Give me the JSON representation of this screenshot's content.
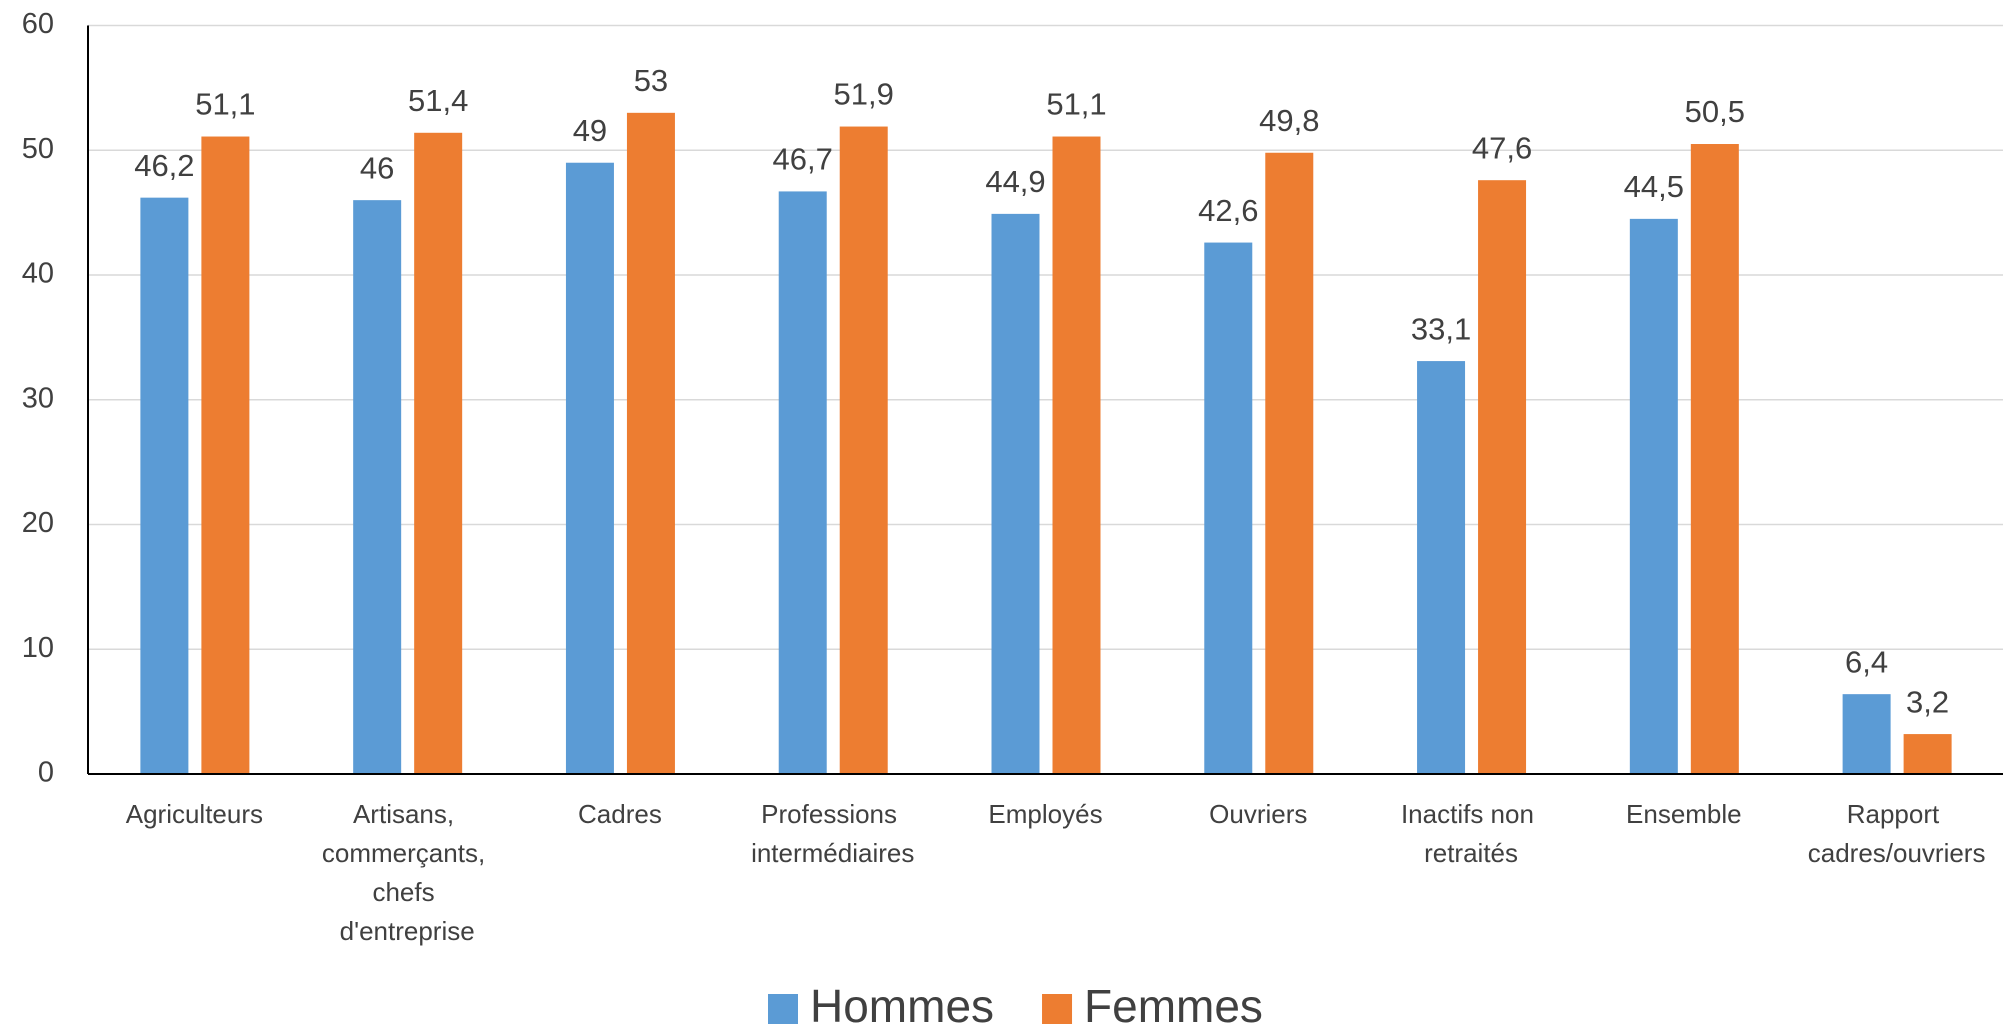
{
  "chart_data": {
    "type": "bar",
    "categories": [
      "Agriculteurs",
      "Artisans, commerçants, chefs d'entreprise",
      "Cadres",
      "Professions intermédiaires",
      "Employés",
      "Ouvriers",
      "Inactifs non retraités",
      "Ensemble",
      "Rapport cadres/ouvriers"
    ],
    "series": [
      {
        "name": "Hommes",
        "color": "#5b9bd5",
        "values": [
          46.2,
          46,
          49,
          46.7,
          44.9,
          42.6,
          33.1,
          44.5,
          6.4
        ],
        "value_labels": [
          "46,2",
          "46",
          "49",
          "46,7",
          "44,9",
          "42,6",
          "33,1",
          "44,5",
          "6,4"
        ]
      },
      {
        "name": "Femmes",
        "color": "#ed7d31",
        "values": [
          51.1,
          51.4,
          53,
          51.9,
          51.1,
          49.8,
          47.6,
          50.5,
          3.2
        ],
        "value_labels": [
          "51,1",
          "51,4",
          "53",
          "51,9",
          "51,1",
          "49,8",
          "47,6",
          "50,5",
          "3,2"
        ]
      }
    ],
    "ylim": [
      0,
      60
    ],
    "yticks": [
      0,
      10,
      20,
      30,
      40,
      50,
      60
    ],
    "grid": true,
    "legend": "bottom"
  }
}
